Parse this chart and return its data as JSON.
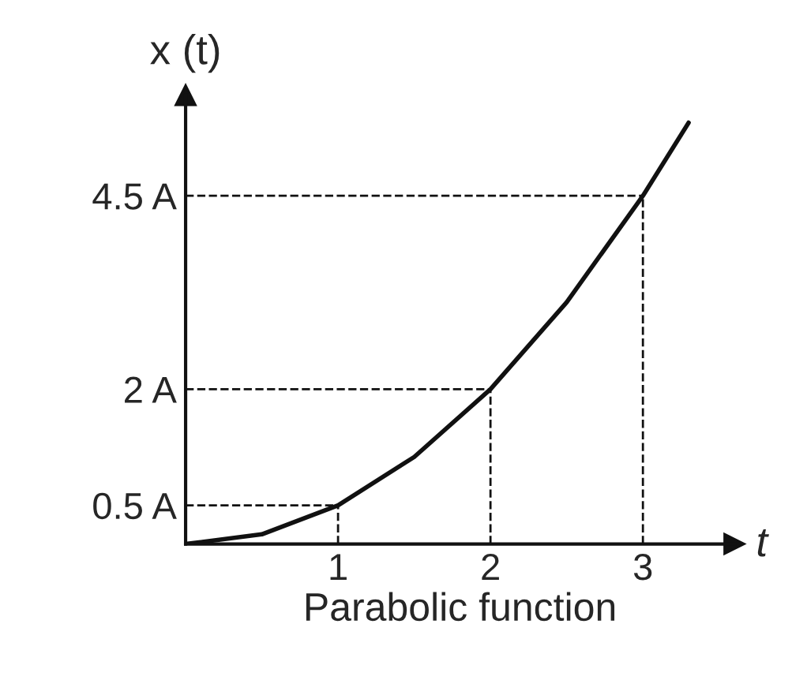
{
  "chart_data": {
    "type": "line",
    "title": "Parabolic function",
    "xlabel": "t",
    "ylabel": "x (t)",
    "x": [
      0,
      0.5,
      1,
      1.5,
      2,
      2.5,
      3,
      3.3
    ],
    "series": [
      {
        "color": "#111111",
        "values": [
          0,
          0.125,
          0.5,
          1.125,
          2,
          3.125,
          4.5,
          5.445
        ]
      }
    ],
    "xlim": [
      0,
      3.6
    ],
    "ylim": [
      0,
      5.8
    ],
    "xticks": [
      1,
      2,
      3
    ],
    "yticks": [
      {
        "value": 0.5,
        "label": "0.5 A"
      },
      {
        "value": 2,
        "label": "2 A"
      },
      {
        "value": 4.5,
        "label": "4.5 A"
      }
    ],
    "ref_lines": [
      {
        "axis": "x",
        "value": 1,
        "line_style": "dashed",
        "color": "#111111"
      },
      {
        "axis": "x",
        "value": 2,
        "line_style": "dashed",
        "color": "#111111"
      },
      {
        "axis": "x",
        "value": 3,
        "line_style": "dashed",
        "color": "#111111"
      },
      {
        "axis": "y",
        "value": 0.5,
        "line_style": "dashed",
        "color": "#111111"
      },
      {
        "axis": "y",
        "value": 2,
        "line_style": "dashed",
        "color": "#111111"
      },
      {
        "axis": "y",
        "value": 4.5,
        "line_style": "dashed",
        "color": "#111111"
      }
    ],
    "grid": false,
    "legend": false,
    "marker": "none",
    "line_style": "solid"
  }
}
